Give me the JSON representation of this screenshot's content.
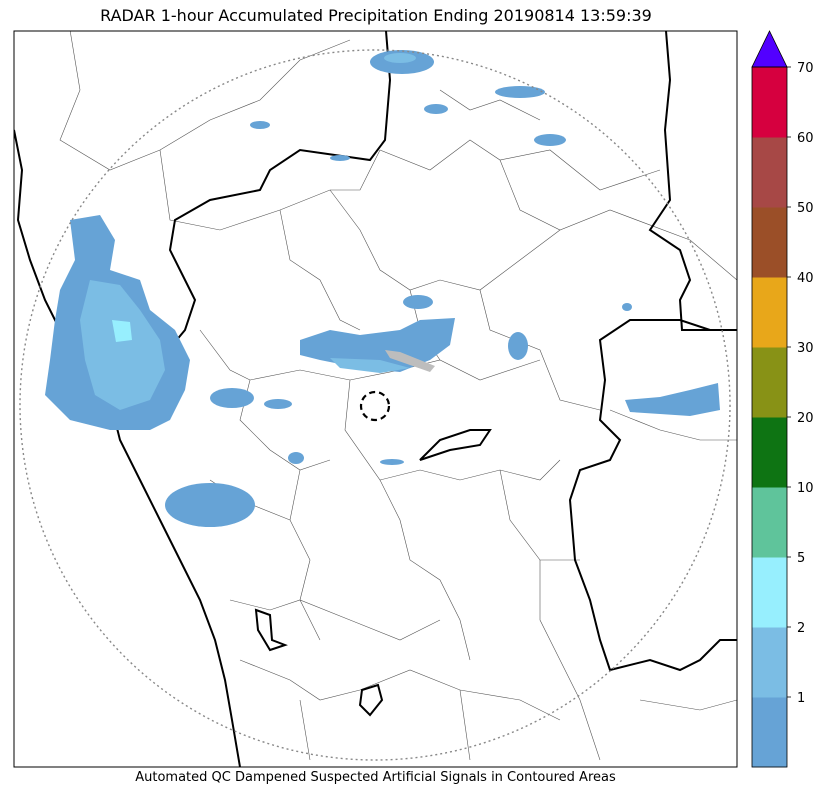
{
  "title": "RADAR 1-hour Accumulated Precipitation Ending 20190814 13:59:39",
  "footer": "Automated QC Dampened Suspected Artificial Signals in Contoured Areas",
  "colorbar": {
    "levels": [
      0,
      1,
      2,
      5,
      10,
      20,
      30,
      40,
      50,
      60,
      70
    ],
    "tick_labels": [
      "1",
      "2",
      "5",
      "10",
      "20",
      "30",
      "40",
      "50",
      "60",
      "70"
    ],
    "colors": [
      "#66a3d6",
      "#7bbde4",
      "#97effe",
      "#5fc49b",
      "#0e7413",
      "#889216",
      "#e8a71a",
      "#9b4f28",
      "#a74846",
      "#d6003f"
    ],
    "extend_color": "#5200ff"
  },
  "colors": {
    "rain_light": "#66a3d6",
    "rain_mid": "#7bbde4",
    "rain_heavy": "#97effe",
    "border_state": "#000000",
    "border_district": "#555555",
    "range_ring": "#888888",
    "suppressed": "#bdbdbd"
  }
}
